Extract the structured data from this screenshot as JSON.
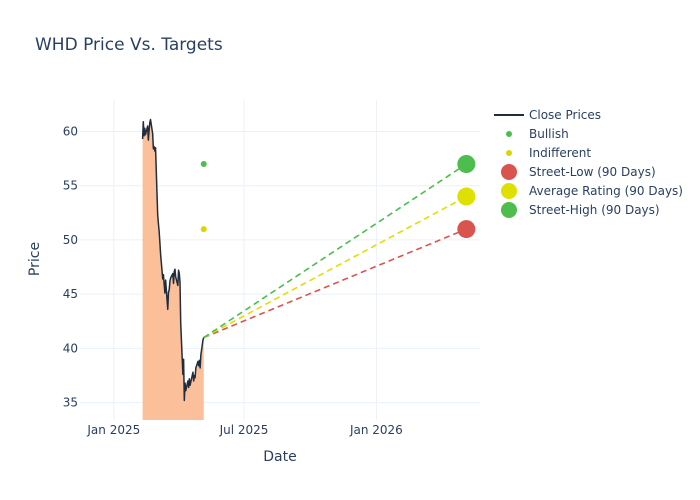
{
  "chart_data": {
    "type": "line",
    "title": "WHD Price Vs. Targets",
    "xlabel": "Date",
    "ylabel": "Price",
    "x_ticks": [
      "Jan 2025",
      "Jul 2025",
      "Jan 2026"
    ],
    "x_tick_dates": [
      "2025-01-01",
      "2025-07-01",
      "2026-01-01"
    ],
    "y_ticks": [
      35,
      40,
      45,
      50,
      55,
      60
    ],
    "xlim": [
      "2024-11-15",
      "2026-05-25"
    ],
    "ylim": [
      33.4,
      62.9
    ],
    "grid": true,
    "legend_position": "right",
    "series": [
      {
        "name": "Close Prices",
        "kind": "line",
        "fill": "tozero",
        "color": "#1f2d3d",
        "fill_color": "#fbbf9a",
        "points": [
          [
            "2025-02-10",
            59.3
          ],
          [
            "2025-02-11",
            60.9
          ],
          [
            "2025-02-12",
            59.6
          ],
          [
            "2025-02-13",
            60.3
          ],
          [
            "2025-02-14",
            59.7
          ],
          [
            "2025-02-17",
            60.5
          ],
          [
            "2025-02-18",
            59.2
          ],
          [
            "2025-02-19",
            60.1
          ],
          [
            "2025-02-20",
            60.8
          ],
          [
            "2025-02-21",
            61.1
          ],
          [
            "2025-02-24",
            59.8
          ],
          [
            "2025-02-25",
            58.4
          ],
          [
            "2025-02-26",
            58.6
          ],
          [
            "2025-02-27",
            58.2
          ],
          [
            "2025-02-28",
            58.5
          ],
          [
            "2025-03-03",
            52.3
          ],
          [
            "2025-03-04",
            51.5
          ],
          [
            "2025-03-05",
            50.8
          ],
          [
            "2025-03-06",
            49.8
          ],
          [
            "2025-03-07",
            48.7
          ],
          [
            "2025-03-10",
            46.4
          ],
          [
            "2025-03-11",
            46.8
          ],
          [
            "2025-03-12",
            45.9
          ],
          [
            "2025-03-13",
            45.1
          ],
          [
            "2025-03-14",
            46.3
          ],
          [
            "2025-03-17",
            43.6
          ],
          [
            "2025-03-18",
            45.2
          ],
          [
            "2025-03-19",
            45.4
          ],
          [
            "2025-03-20",
            46.2
          ],
          [
            "2025-03-21",
            46.5
          ],
          [
            "2025-03-24",
            46.9
          ],
          [
            "2025-03-25",
            46.0
          ],
          [
            "2025-03-26",
            47.1
          ],
          [
            "2025-03-27",
            47.3
          ],
          [
            "2025-03-28",
            46.6
          ],
          [
            "2025-03-31",
            45.8
          ],
          [
            "2025-04-01",
            47.2
          ],
          [
            "2025-04-02",
            46.9
          ],
          [
            "2025-04-03",
            46.1
          ],
          [
            "2025-04-04",
            42.3
          ],
          [
            "2025-04-07",
            37.6
          ],
          [
            "2025-04-08",
            39.0
          ],
          [
            "2025-04-09",
            35.2
          ],
          [
            "2025-04-10",
            36.8
          ],
          [
            "2025-04-11",
            36.1
          ],
          [
            "2025-04-14",
            37.0
          ],
          [
            "2025-04-15",
            36.4
          ],
          [
            "2025-04-16",
            37.2
          ],
          [
            "2025-04-17",
            36.6
          ],
          [
            "2025-04-21",
            37.8
          ],
          [
            "2025-04-22",
            37.0
          ],
          [
            "2025-04-23",
            37.5
          ],
          [
            "2025-04-24",
            37.3
          ],
          [
            "2025-04-25",
            38.2
          ],
          [
            "2025-04-28",
            38.8
          ],
          [
            "2025-04-29",
            38.4
          ],
          [
            "2025-04-30",
            38.9
          ],
          [
            "2025-05-01",
            38.2
          ],
          [
            "2025-05-02",
            39.4
          ],
          [
            "2025-05-05",
            40.8
          ],
          [
            "2025-05-06",
            41.0
          ]
        ]
      },
      {
        "name": "Bullish",
        "kind": "marker",
        "color": "#4dbd4d",
        "points": [
          [
            "2025-05-06",
            57
          ]
        ]
      },
      {
        "name": "Indifferent",
        "kind": "marker",
        "color": "#dbd600",
        "points": [
          [
            "2025-05-06",
            51
          ]
        ]
      },
      {
        "name": "Street-Low (90 Days)",
        "kind": "target",
        "color": "#d9534f",
        "points": [
          [
            "2025-05-06",
            41.0
          ],
          [
            "2026-05-06",
            51
          ]
        ]
      },
      {
        "name": "Average Rating (90 Days)",
        "kind": "target",
        "color": "#dde000",
        "points": [
          [
            "2025-05-06",
            41.0
          ],
          [
            "2026-05-06",
            54
          ]
        ]
      },
      {
        "name": "Street-High (90 Days)",
        "kind": "target",
        "color": "#4dbd4d",
        "points": [
          [
            "2025-05-06",
            41.0
          ],
          [
            "2026-05-06",
            57
          ]
        ]
      }
    ]
  }
}
